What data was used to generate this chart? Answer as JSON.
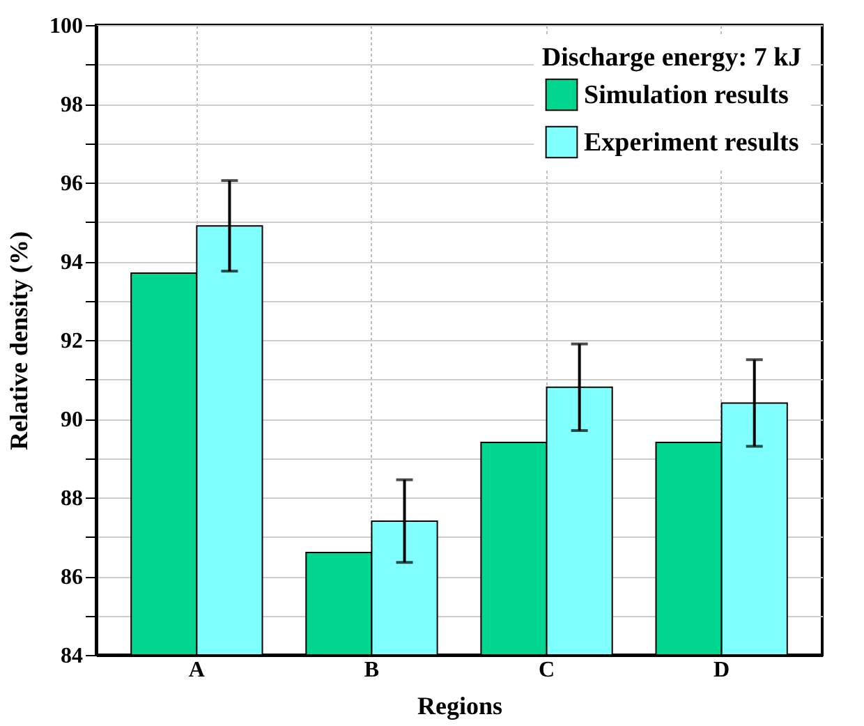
{
  "chart_data": {
    "type": "bar",
    "xlabel": "Regions",
    "ylabel": "Relative density (%)",
    "legend_title": "Discharge energy: 7 kJ",
    "categories": [
      "A",
      "B",
      "C",
      "D"
    ],
    "series": [
      {
        "name": "Simulation results",
        "color": "#00d68f",
        "values": [
          93.7,
          86.6,
          89.4,
          89.4
        ]
      },
      {
        "name": "Experiment results",
        "color": "#80ffff",
        "values": [
          94.9,
          87.4,
          90.8,
          90.4
        ],
        "errors": [
          1.15,
          1.05,
          1.1,
          1.1
        ]
      }
    ],
    "ylim": [
      84,
      100
    ],
    "yticks": [
      84,
      {
        "value": 85,
        "label": null
      },
      86,
      {
        "value": 87,
        "label": null
      },
      88,
      {
        "value": 89,
        "label": null
      },
      90,
      {
        "value": 91,
        "label": null
      },
      92,
      {
        "value": 93,
        "label": null
      },
      94,
      {
        "value": 95,
        "label": null
      },
      96,
      {
        "value": 97,
        "label": null
      },
      98,
      {
        "value": 99,
        "label": null
      },
      100
    ],
    "grid": true,
    "legend": "top right"
  }
}
